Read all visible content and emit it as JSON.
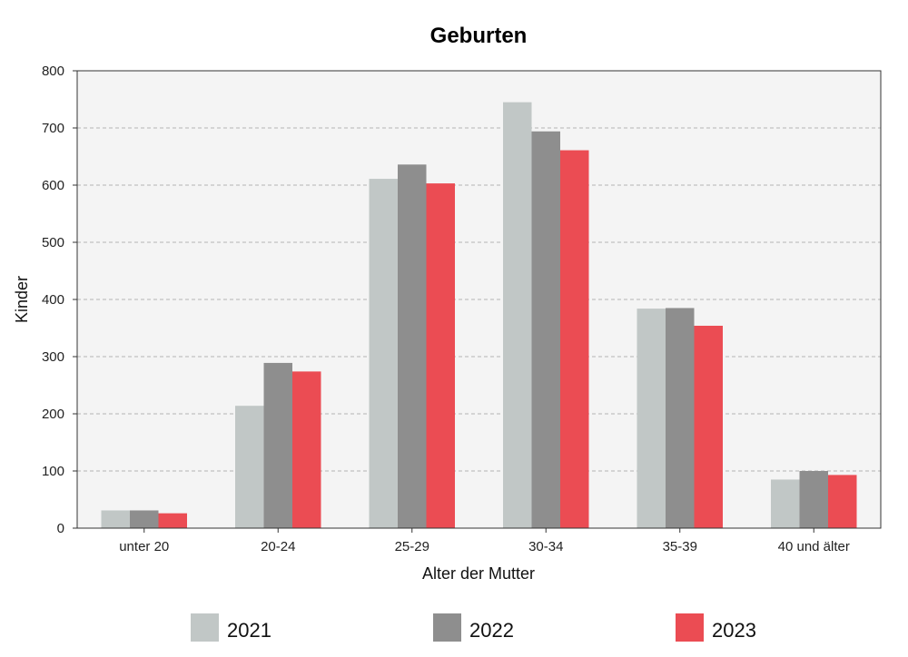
{
  "chart_data": {
    "type": "bar",
    "title": "Geburten",
    "xlabel": "Alter der Mutter",
    "ylabel": "Kinder",
    "ylim": [
      0,
      800
    ],
    "yticks": [
      0,
      100,
      200,
      300,
      400,
      500,
      600,
      700,
      800
    ],
    "grid": true,
    "legend_position": "bottom",
    "categories": [
      "unter 20",
      "20-24",
      "25-29",
      "30-34",
      "35-39",
      "40 und älter"
    ],
    "series": [
      {
        "name": "2021",
        "color": "#c1c7c6",
        "values": [
          31,
          214,
          611,
          745,
          384,
          85
        ]
      },
      {
        "name": "2022",
        "color": "#8e8e8e",
        "values": [
          31,
          289,
          636,
          694,
          385,
          100
        ]
      },
      {
        "name": "2023",
        "color": "#eb4c53",
        "values": [
          26,
          274,
          603,
          661,
          354,
          93
        ]
      }
    ]
  }
}
